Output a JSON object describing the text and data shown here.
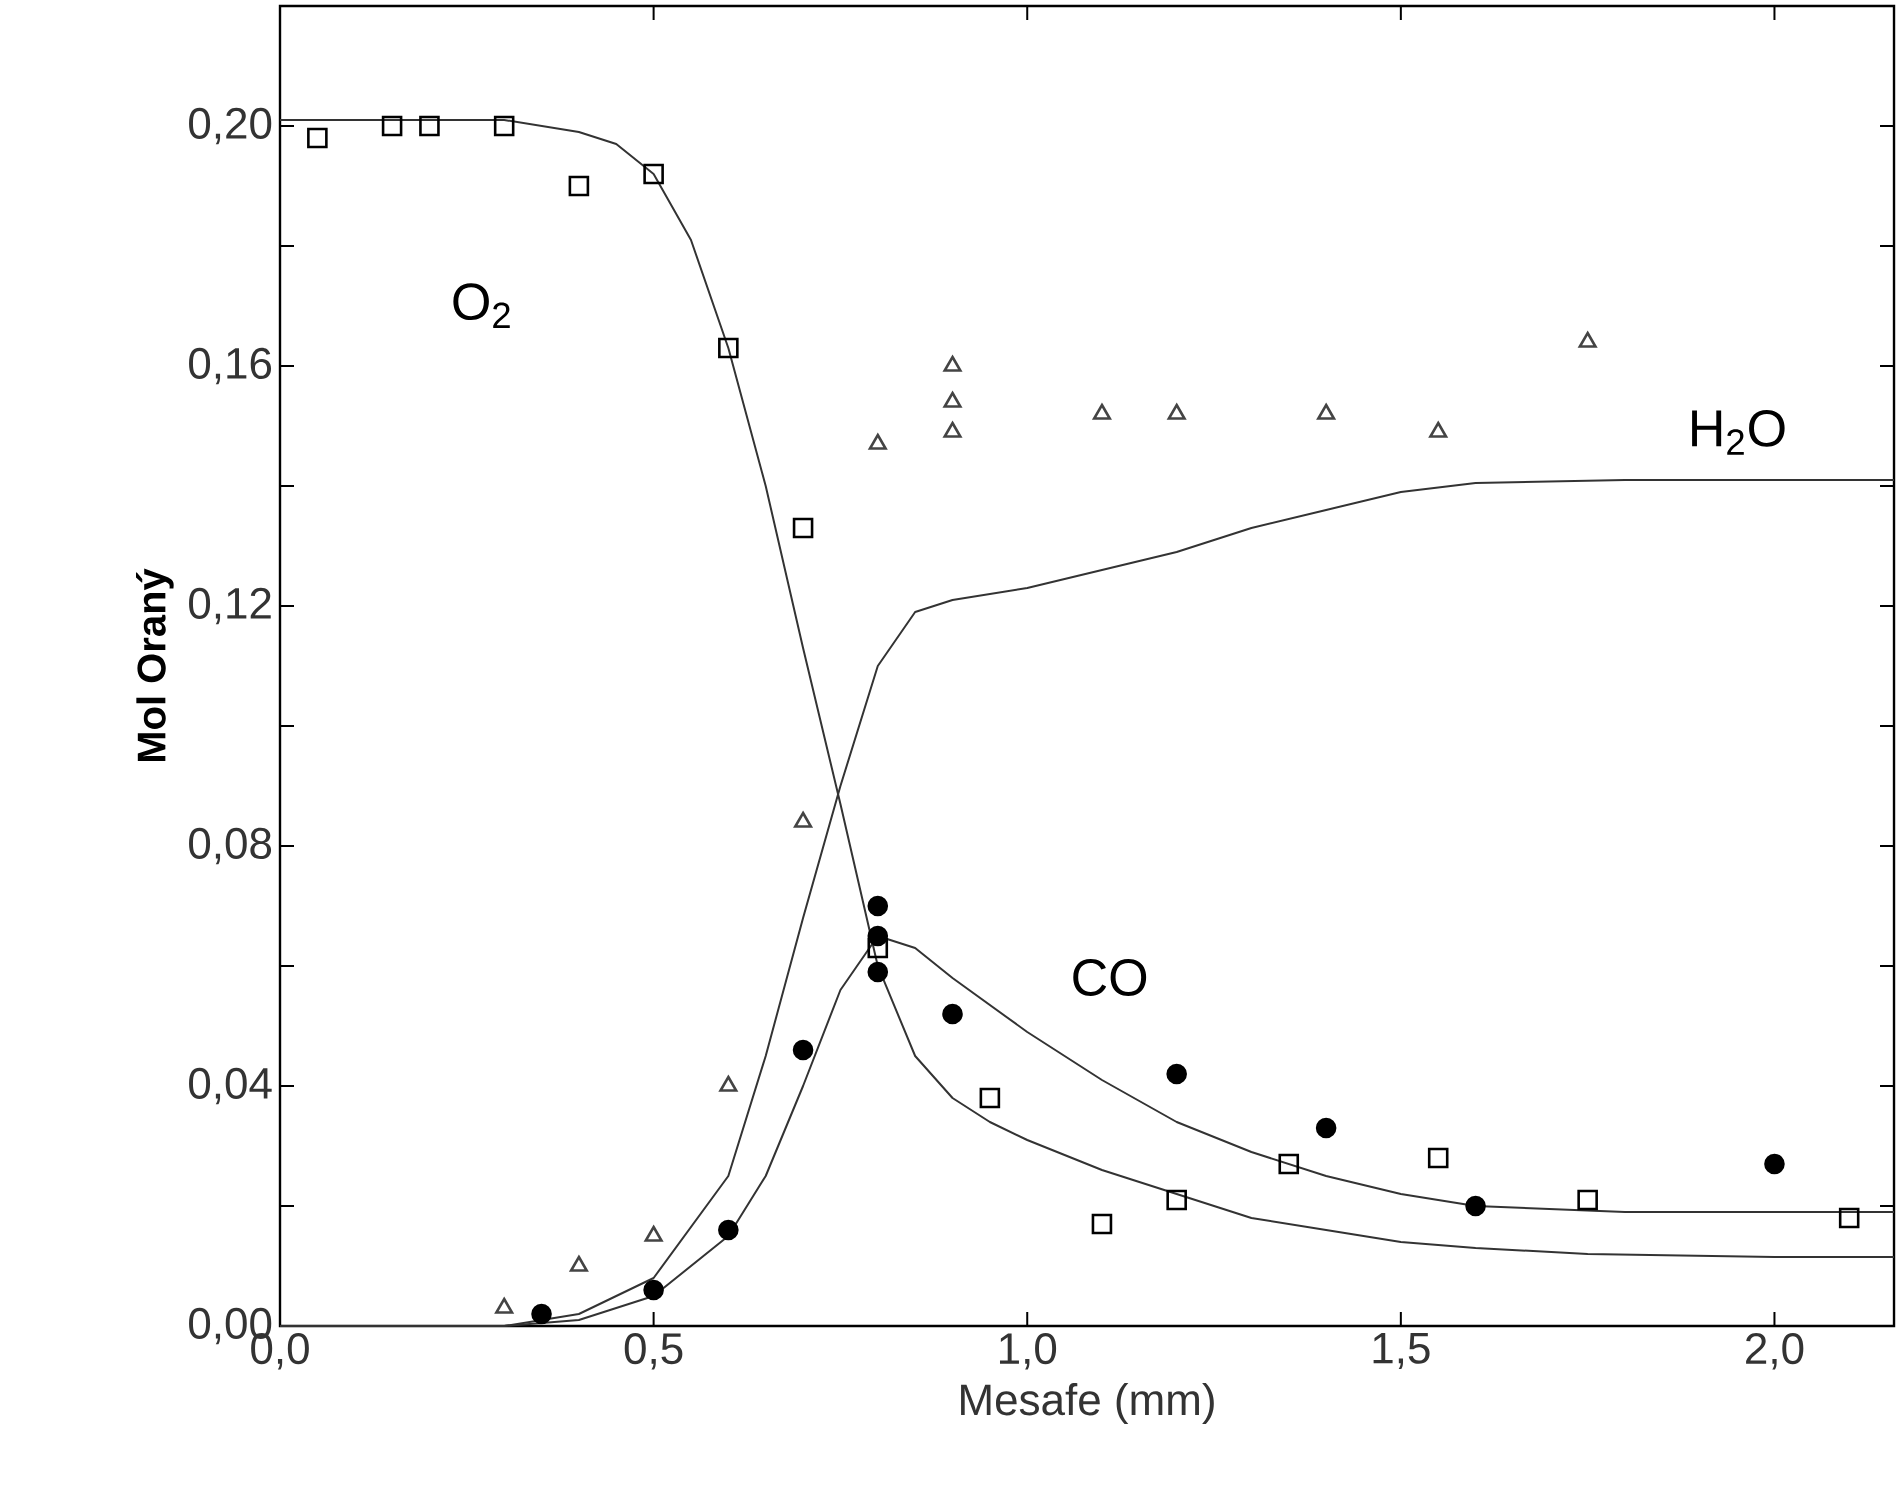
{
  "chart_data": {
    "type": "scatter",
    "xlabel": "Mesafe (mm)",
    "ylabel": "Mol Oraný",
    "xlim": [
      0,
      2.16
    ],
    "ylim": [
      0,
      0.22
    ],
    "xticks": [
      {
        "value": 0,
        "label": "0,0"
      },
      {
        "value": 0.5,
        "label": "0,5"
      },
      {
        "value": 1.0,
        "label": "1,0"
      },
      {
        "value": 1.5,
        "label": "1,5"
      },
      {
        "value": 2.0,
        "label": "2,0"
      }
    ],
    "yticks": [
      {
        "value": 0,
        "label": "0,00"
      },
      {
        "value": 0.02,
        "label": null
      },
      {
        "value": 0.04,
        "label": "0,04"
      },
      {
        "value": 0.06,
        "label": null
      },
      {
        "value": 0.08,
        "label": "0,08"
      },
      {
        "value": 0.1,
        "label": null
      },
      {
        "value": 0.12,
        "label": "0,12"
      },
      {
        "value": 0.14,
        "label": null
      },
      {
        "value": 0.16,
        "label": "0,16"
      },
      {
        "value": 0.18,
        "label": null
      },
      {
        "value": 0.2,
        "label": "0,20"
      }
    ],
    "series": [
      {
        "marker": "square",
        "color": "#000000",
        "x": [
          0.05,
          0.15,
          0.2,
          0.3,
          0.4,
          0.5,
          0.6,
          0.7,
          0.8,
          0.95,
          1.1,
          1.2,
          1.35,
          1.55,
          1.75,
          2.1
        ],
        "values": [
          0.198,
          0.2,
          0.2,
          0.2,
          0.19,
          0.192,
          0.163,
          0.133,
          0.063,
          0.038,
          0.017,
          0.021,
          0.027,
          0.028,
          0.021,
          0.018
        ]
      },
      {
        "marker": "triangle",
        "color": "#444444",
        "x": [
          0.3,
          0.4,
          0.5,
          0.6,
          0.7,
          0.8,
          0.9,
          0.9,
          0.9,
          1.1,
          1.2,
          1.4,
          1.55,
          1.75
        ],
        "values": [
          0.003,
          0.01,
          0.015,
          0.04,
          0.084,
          0.147,
          0.16,
          0.154,
          0.149,
          0.152,
          0.152,
          0.152,
          0.149,
          0.164
        ]
      },
      {
        "marker": "circle",
        "color": "#000000",
        "x": [
          0.35,
          0.5,
          0.6,
          0.7,
          0.8,
          0.8,
          0.8,
          0.9,
          1.2,
          1.4,
          1.6,
          2.0
        ],
        "values": [
          0.002,
          0.006,
          0.016,
          0.046,
          0.07,
          0.065,
          0.059,
          0.052,
          0.042,
          0.033,
          0.02,
          0.027
        ]
      },
      {
        "type": "line",
        "color": "#333333",
        "x": [
          0,
          0.3,
          0.4,
          0.45,
          0.5,
          0.55,
          0.6,
          0.65,
          0.7,
          0.75,
          0.8,
          0.85,
          0.9,
          0.95,
          1.0,
          1.1,
          1.2,
          1.3,
          1.4,
          1.5,
          1.6,
          1.75,
          2.0,
          2.16
        ],
        "values": [
          0.201,
          0.201,
          0.199,
          0.197,
          0.192,
          0.181,
          0.163,
          0.14,
          0.113,
          0.087,
          0.06,
          0.045,
          0.038,
          0.034,
          0.031,
          0.026,
          0.022,
          0.018,
          0.016,
          0.014,
          0.013,
          0.012,
          0.0115,
          0.0115
        ]
      },
      {
        "type": "line",
        "color": "#333333",
        "x": [
          0,
          0.3,
          0.4,
          0.5,
          0.6,
          0.65,
          0.7,
          0.75,
          0.8,
          0.85,
          0.9,
          1.0,
          1.1,
          1.2,
          1.3,
          1.4,
          1.5,
          1.6,
          1.8,
          2.16
        ],
        "values": [
          0,
          0,
          0.001,
          0.005,
          0.015,
          0.025,
          0.04,
          0.056,
          0.065,
          0.063,
          0.058,
          0.049,
          0.041,
          0.034,
          0.029,
          0.025,
          0.022,
          0.02,
          0.019,
          0.019
        ]
      },
      {
        "type": "line",
        "color": "#333333",
        "x": [
          0,
          0.3,
          0.4,
          0.5,
          0.6,
          0.65,
          0.7,
          0.75,
          0.8,
          0.85,
          0.9,
          1.0,
          1.1,
          1.2,
          1.3,
          1.4,
          1.5,
          1.6,
          1.8,
          2.16
        ],
        "values": [
          0,
          0,
          0.002,
          0.008,
          0.025,
          0.045,
          0.068,
          0.09,
          0.11,
          0.119,
          0.121,
          0.123,
          0.126,
          0.129,
          0.133,
          0.136,
          0.139,
          0.1405,
          0.141,
          0.141
        ]
      }
    ],
    "annotations": [
      "O$_{2}$",
      "H$_{2}$O",
      "CO"
    ]
  }
}
